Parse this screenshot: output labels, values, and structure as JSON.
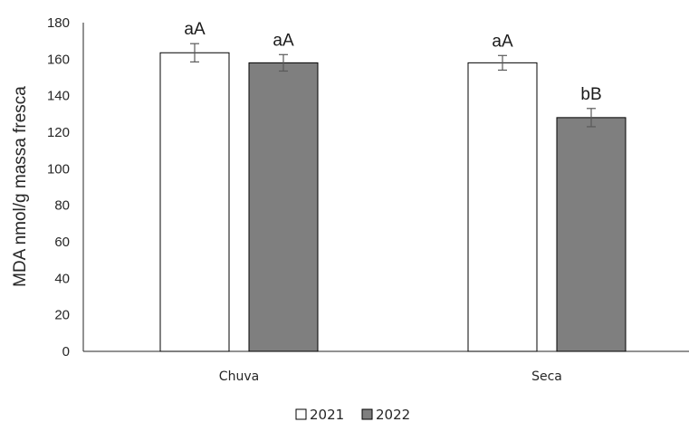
{
  "chart_data": {
    "type": "bar",
    "title": "",
    "xlabel": "",
    "ylabel": "MDA nmol/g massa fresca",
    "categories": [
      "Chuva",
      "Seca"
    ],
    "series": [
      {
        "name": "2021",
        "values": [
          163.5,
          158
        ],
        "errors": [
          5,
          4
        ],
        "labels": [
          "aA",
          "aA"
        ],
        "color": "#ffffff"
      },
      {
        "name": "2022",
        "values": [
          158,
          128
        ],
        "errors": [
          4.5,
          5
        ],
        "labels": [
          "aA",
          "bB"
        ],
        "color": "#7f7f7f"
      }
    ],
    "ylim": [
      0,
      180
    ],
    "yticks": [
      "0",
      "20",
      "40",
      "60",
      "80",
      "100",
      "120",
      "140",
      "160",
      "180"
    ],
    "grid": false,
    "legend_position": "bottom"
  }
}
